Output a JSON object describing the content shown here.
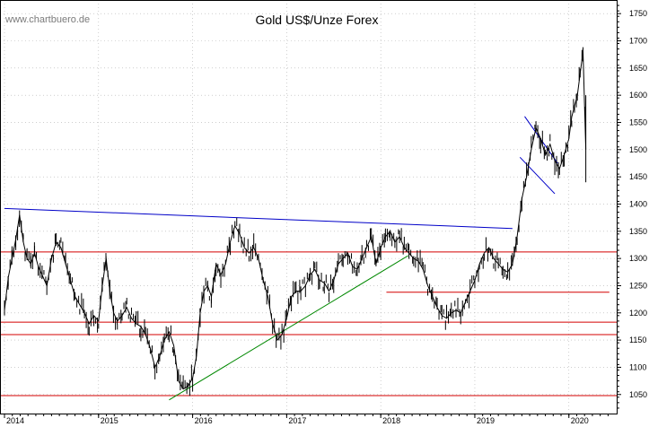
{
  "chart_data": {
    "type": "line",
    "title": "Gold US$/Unze Forex",
    "watermark": "www.chartbuero.de",
    "xlabel": "",
    "ylabel": "",
    "x_ticks": [
      "2014",
      "2015",
      "2016",
      "2017",
      "2018",
      "2019",
      "2020"
    ],
    "y_ticks": [
      1050,
      1100,
      1150,
      1200,
      1250,
      1300,
      1350,
      1400,
      1450,
      1500,
      1550,
      1600,
      1650,
      1700,
      1750
    ],
    "ylim": [
      1015,
      1775
    ],
    "xlim": [
      2014.0,
      2020.47
    ],
    "grid": true,
    "colors": {
      "price": "#000000",
      "support": "#d40000",
      "resistance": "#0000c8",
      "uptrend": "#008800",
      "grid": "#b0b0b0"
    },
    "series": [
      {
        "values_x": [
          2014.0,
          2014.04,
          2014.08,
          2014.12,
          2014.16,
          2014.2,
          2014.24,
          2014.28,
          2014.32,
          2014.36,
          2014.4,
          2014.45,
          2014.5,
          2014.55,
          2014.6,
          2014.65,
          2014.7,
          2014.75,
          2014.8,
          2014.85,
          2014.9,
          2014.95,
          2015.0,
          2015.04,
          2015.08,
          2015.12,
          2015.16,
          2015.2,
          2015.25,
          2015.3,
          2015.35,
          2015.4,
          2015.45,
          2015.5,
          2015.55,
          2015.6,
          2015.65,
          2015.7,
          2015.75,
          2015.8,
          2015.85,
          2015.9,
          2015.95,
          2016.0,
          2016.04,
          2016.08,
          2016.12,
          2016.16,
          2016.2,
          2016.25,
          2016.3,
          2016.35,
          2016.4,
          2016.45,
          2016.5,
          2016.55,
          2016.6,
          2016.65,
          2016.7,
          2016.75,
          2016.8,
          2016.85,
          2016.9,
          2016.95,
          2017.0,
          2017.05,
          2017.1,
          2017.15,
          2017.2,
          2017.25,
          2017.3,
          2017.35,
          2017.4,
          2017.45,
          2017.5,
          2017.55,
          2017.6,
          2017.65,
          2017.7,
          2017.75,
          2017.8,
          2017.85,
          2017.9,
          2017.95,
          2018.0,
          2018.05,
          2018.1,
          2018.15,
          2018.2,
          2018.25,
          2018.3,
          2018.35,
          2018.4,
          2018.45,
          2018.5,
          2018.55,
          2018.6,
          2018.65,
          2018.7,
          2018.75,
          2018.8,
          2018.85,
          2018.9,
          2018.95,
          2019.0,
          2019.05,
          2019.1,
          2019.15,
          2019.2,
          2019.25,
          2019.3,
          2019.35,
          2019.4,
          2019.45,
          2019.5,
          2019.55,
          2019.6,
          2019.65,
          2019.7,
          2019.75,
          2019.8,
          2019.85,
          2019.9,
          2019.95,
          2020.0,
          2020.03,
          2020.06,
          2020.09,
          2020.12,
          2020.15,
          2020.18
        ],
        "values": [
          1205,
          1265,
          1300,
          1335,
          1380,
          1330,
          1300,
          1290,
          1310,
          1285,
          1270,
          1250,
          1300,
          1330,
          1320,
          1290,
          1260,
          1230,
          1215,
          1200,
          1180,
          1195,
          1185,
          1250,
          1300,
          1240,
          1200,
          1185,
          1195,
          1210,
          1190,
          1180,
          1175,
          1160,
          1135,
          1100,
          1120,
          1150,
          1165,
          1140,
          1075,
          1060,
          1065,
          1080,
          1120,
          1200,
          1240,
          1250,
          1230,
          1290,
          1270,
          1290,
          1330,
          1360,
          1345,
          1320,
          1310,
          1320,
          1300,
          1260,
          1230,
          1180,
          1150,
          1160,
          1190,
          1230,
          1240,
          1240,
          1250,
          1270,
          1280,
          1260,
          1255,
          1240,
          1260,
          1290,
          1300,
          1310,
          1285,
          1280,
          1300,
          1320,
          1340,
          1290,
          1320,
          1340,
          1350,
          1330,
          1340,
          1320,
          1310,
          1300,
          1295,
          1280,
          1250,
          1230,
          1210,
          1195,
          1190,
          1200,
          1205,
          1200,
          1220,
          1240,
          1260,
          1290,
          1310,
          1320,
          1300,
          1290,
          1280,
          1275,
          1290,
          1340,
          1410,
          1450,
          1500,
          1540,
          1520,
          1490,
          1510,
          1480,
          1465,
          1490,
          1520,
          1560,
          1580,
          1600,
          1640,
          1680,
          1500
        ]
      }
    ],
    "annotations": [
      {
        "type": "hline",
        "color": "support",
        "y": 1048
      },
      {
        "type": "hline",
        "color": "support",
        "y": 1160
      },
      {
        "type": "hline",
        "color": "support",
        "y": 1183
      },
      {
        "type": "hline",
        "color": "support",
        "y": 1312
      },
      {
        "type": "segment",
        "color": "support",
        "x1": 2018.06,
        "y1": 1238,
        "x2": 2020.43,
        "y2": 1238
      },
      {
        "type": "segment",
        "color": "resistance",
        "x1": 2014.0,
        "y1": 1392,
        "x2": 2019.4,
        "y2": 1355
      },
      {
        "type": "segment",
        "color": "uptrend",
        "x1": 2015.75,
        "y1": 1040,
        "x2": 2018.29,
        "y2": 1305
      },
      {
        "type": "segment",
        "color": "resistance",
        "x1": 2019.53,
        "y1": 1561,
        "x2": 2019.88,
        "y2": 1475
      },
      {
        "type": "segment",
        "color": "resistance",
        "x1": 2019.48,
        "y1": 1486,
        "x2": 2019.85,
        "y2": 1419
      }
    ]
  }
}
